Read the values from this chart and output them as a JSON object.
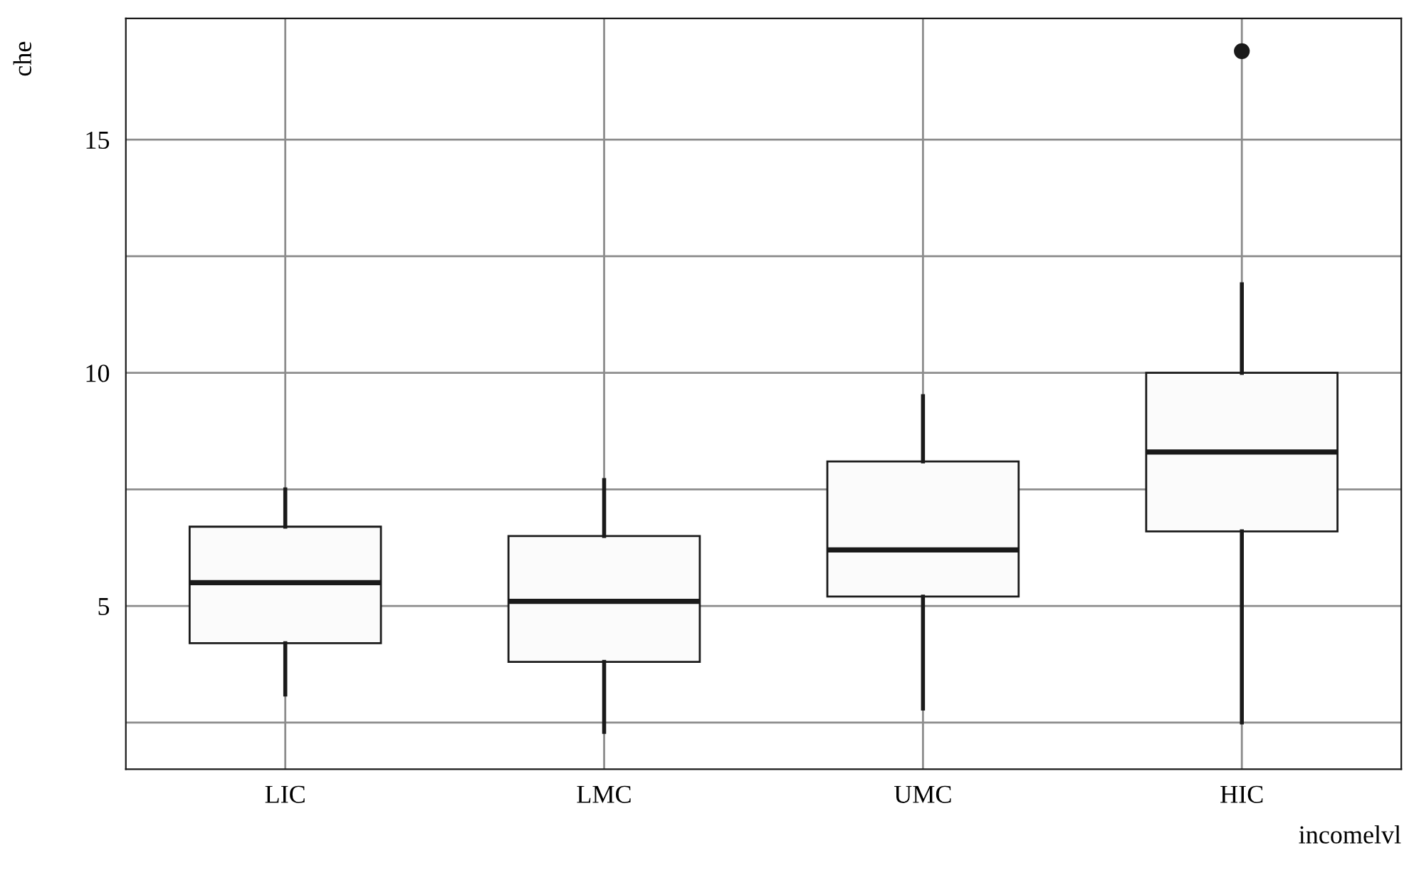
{
  "chart_data": {
    "type": "box",
    "xlabel": "incomelvl",
    "ylabel": "che",
    "categories": [
      "LIC",
      "LMC",
      "UMC",
      "HIC"
    ],
    "boxes": [
      {
        "low": 3.1,
        "q1": 4.2,
        "median": 5.5,
        "q3": 6.7,
        "high": 7.5
      },
      {
        "low": 2.3,
        "q1": 3.8,
        "median": 5.1,
        "q3": 6.5,
        "high": 7.7
      },
      {
        "low": 2.8,
        "q1": 5.2,
        "median": 6.2,
        "q3": 8.1,
        "high": 9.5
      },
      {
        "low": 2.5,
        "q1": 6.6,
        "median": 8.3,
        "q3": 10.0,
        "high": 11.9,
        "outliers": [
          16.9
        ]
      }
    ],
    "ylim": [
      1.5,
      17.6
    ],
    "yticks": [
      {
        "value": 2.5,
        "label": null
      },
      5,
      {
        "value": 7.5,
        "label": null
      },
      10,
      {
        "value": 12.5,
        "label": null
      },
      15
    ],
    "grid": true
  }
}
